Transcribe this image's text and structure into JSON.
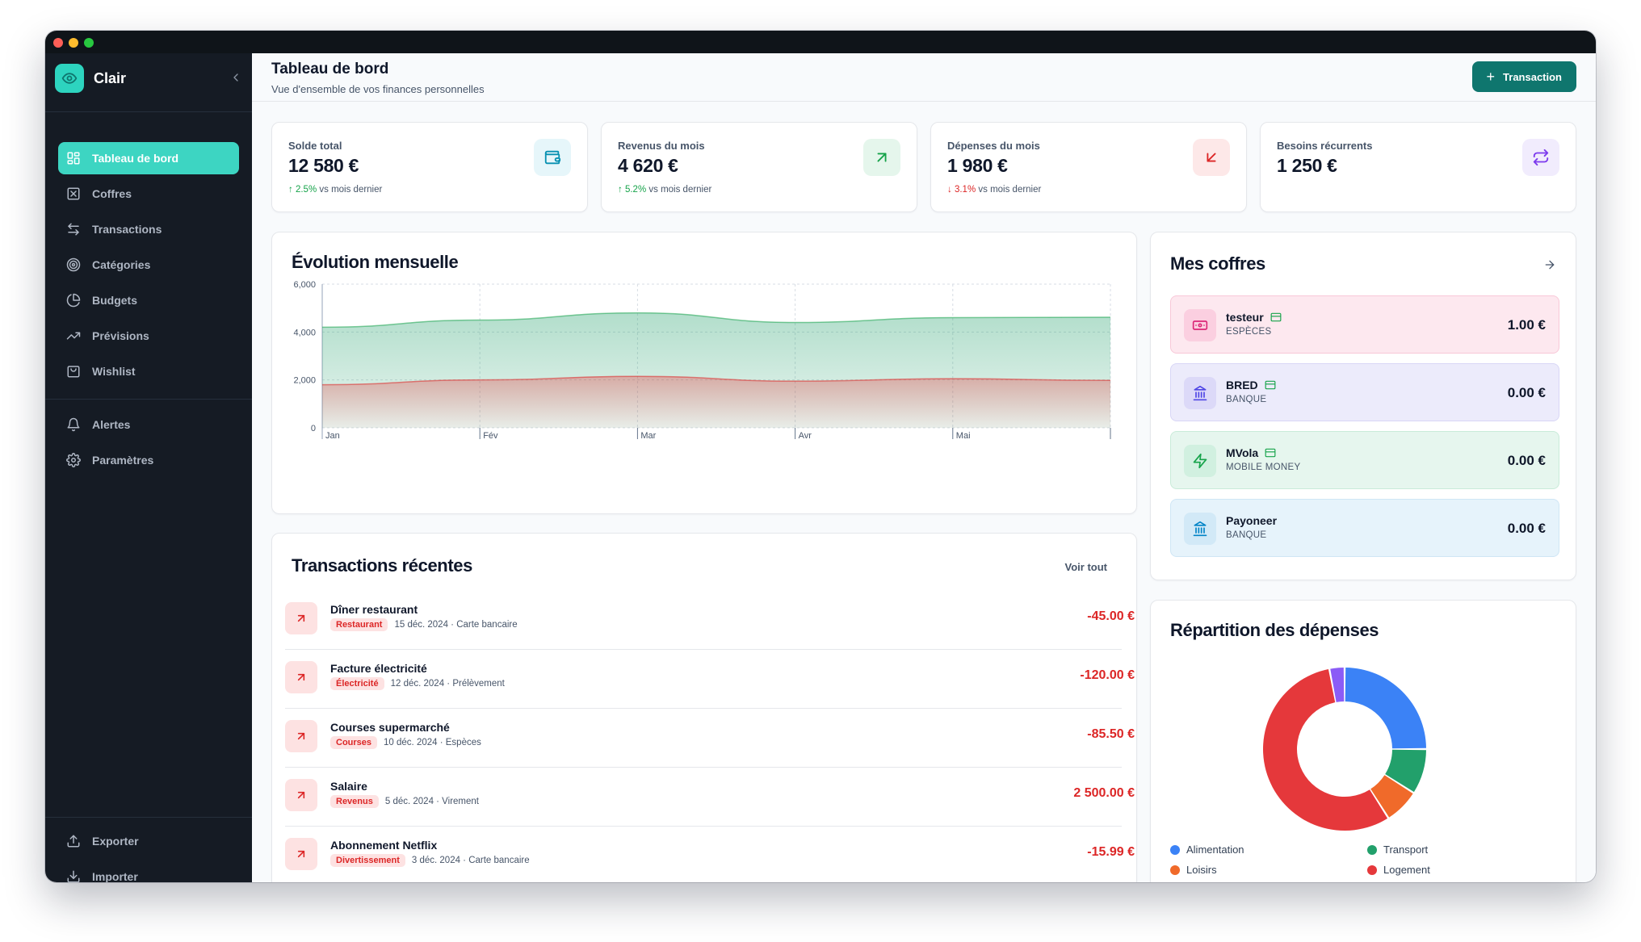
{
  "app": {
    "name": "Clair"
  },
  "sidebar": {
    "items": [
      {
        "label": "Tableau de bord",
        "icon": "layout-grid-icon",
        "active": true
      },
      {
        "label": "Coffres",
        "icon": "vault-icon"
      },
      {
        "label": "Transactions",
        "icon": "arrows-left-right-icon"
      },
      {
        "label": "Catégories",
        "icon": "target-icon"
      },
      {
        "label": "Budgets",
        "icon": "pie-chart-icon"
      },
      {
        "label": "Prévisions",
        "icon": "trending-up-icon"
      },
      {
        "label": "Wishlist",
        "icon": "shopping-bag-icon"
      }
    ],
    "secondary": [
      {
        "label": "Alertes",
        "icon": "bell-icon"
      },
      {
        "label": "Paramètres",
        "icon": "gear-icon"
      }
    ],
    "bottom": [
      {
        "label": "Exporter",
        "icon": "upload-icon"
      },
      {
        "label": "Importer",
        "icon": "download-icon"
      }
    ]
  },
  "header": {
    "title": "Tableau de bord",
    "subtitle": "Vue d'ensemble de vos finances personnelles",
    "button_label": "Transaction"
  },
  "stats": [
    {
      "label": "Solde total",
      "value": "12 580 €",
      "trend_arrow": "↑",
      "trend_pct": "2.5%",
      "trend_text": "vs mois dernier",
      "direction": "up",
      "icon": "wallet-icon",
      "color": "#0891b2",
      "bg": "#e6f6fa"
    },
    {
      "label": "Revenus du mois",
      "value": "4 620 €",
      "trend_arrow": "↑",
      "trend_pct": "5.2%",
      "trend_text": "vs mois dernier",
      "direction": "up",
      "icon": "arrow-up-right-icon",
      "color": "#16a34a",
      "bg": "#e5f6ec"
    },
    {
      "label": "Dépenses du mois",
      "value": "1 980 €",
      "trend_arrow": "↓",
      "trend_pct": "3.1%",
      "trend_text": "vs mois dernier",
      "direction": "down",
      "icon": "arrow-down-left-icon",
      "color": "#dc2626",
      "bg": "#fde8e8"
    },
    {
      "label": "Besoins récurrents",
      "value": "1 250 €",
      "icon": "repeat-icon",
      "color": "#7c3aed",
      "bg": "#f1ecfd"
    }
  ],
  "evolution": {
    "title": "Évolution mensuelle"
  },
  "chart_data": {
    "type": "area",
    "title": "Évolution mensuelle",
    "categories": [
      "Jan",
      "Fév",
      "Mar",
      "Avr",
      "Mai",
      ""
    ],
    "yticks": [
      "0",
      "2,000",
      "4,000",
      "6,000"
    ],
    "ylim": [
      0,
      6000
    ],
    "grid": true,
    "series": [
      {
        "values": [
          4200,
          4500,
          4800,
          4400,
          4600,
          4620
        ],
        "color": "#16a34a"
      },
      {
        "values": [
          1800,
          2000,
          2150,
          1950,
          2050,
          1980
        ],
        "color": "#dc2626"
      }
    ]
  },
  "vaults": {
    "title": "Mes coffres",
    "items": [
      {
        "name": "testeur",
        "type": "ESPÈCES",
        "amount": "1.00 €",
        "icon": "cash-icon",
        "bg": "#fde8ef",
        "border": "#f8c8d8",
        "icon_bg": "#fbcfe0",
        "icon_color": "#db2777"
      },
      {
        "name": "BRED",
        "type": "BANQUE",
        "amount": "0.00 €",
        "icon": "bank-icon",
        "bg": "#ecebfb",
        "border": "#d8d6f6",
        "icon_bg": "#dcd9f8",
        "icon_color": "#4f46e5"
      },
      {
        "name": "MVola",
        "type": "MOBILE MONEY",
        "amount": "0.00 €",
        "icon": "lightning-icon",
        "bg": "#e6f6ee",
        "border": "#c9ebd9",
        "icon_bg": "#d1f0e0",
        "icon_color": "#16a34a"
      },
      {
        "name": "Payoneer",
        "type": "BANQUE",
        "amount": "0.00 €",
        "icon": "bank-icon",
        "bg": "#e6f3fb",
        "border": "#cfe6f5",
        "icon_bg": "#d2e9f7",
        "icon_color": "#0284c7"
      }
    ]
  },
  "transactions": {
    "title": "Transactions récentes",
    "see_all": "Voir tout",
    "items": [
      {
        "name": "Dîner restaurant",
        "tag": "Restaurant",
        "meta": "15 déc. 2024 · Carte bancaire",
        "amount": "-45.00 €"
      },
      {
        "name": "Facture électricité",
        "tag": "Électricité",
        "meta": "12 déc. 2024 · Prélèvement",
        "amount": "-120.00 €"
      },
      {
        "name": "Courses supermarché",
        "tag": "Courses",
        "meta": "10 déc. 2024 · Espèces",
        "amount": "-85.50 €"
      },
      {
        "name": "Salaire",
        "tag": "Revenus",
        "meta": "5 déc. 2024 · Virement",
        "amount": "2 500.00 €"
      },
      {
        "name": "Abonnement Netflix",
        "tag": "Divertissement",
        "meta": "3 déc. 2024 · Carte bancaire",
        "amount": "-15.99 €"
      }
    ]
  },
  "expenses": {
    "title": "Répartition des dépenses",
    "slices": [
      {
        "name": "Alimentation",
        "value": 25,
        "color": "#3b82f6"
      },
      {
        "name": "Transport",
        "value": 9,
        "color": "#22a06b"
      },
      {
        "name": "Loisirs",
        "value": 7,
        "color": "#f06a2a"
      },
      {
        "name": "Logement",
        "value": 56,
        "color": "#e5383b"
      },
      {
        "name": "",
        "value": 3,
        "color": "#8b5cf6"
      }
    ]
  }
}
